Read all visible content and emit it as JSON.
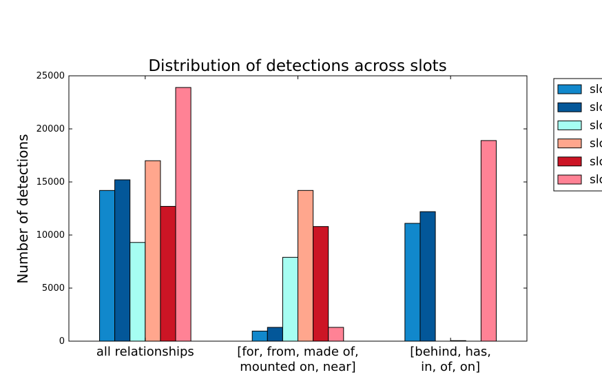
{
  "chart_data": {
    "type": "bar",
    "title": "Distribution of detections across slots",
    "xlabel": "",
    "ylabel": "Number of detections",
    "ylim": [
      0,
      25000
    ],
    "yticks": [
      0,
      5000,
      10000,
      15000,
      20000,
      25000
    ],
    "grid": false,
    "legend_position": "outside top-right (clipped)",
    "categories": [
      [
        "all relationships"
      ],
      [
        "[for, from, made of,",
        "mounted on, near]"
      ],
      [
        "[behind, has,",
        "in, of, on]"
      ]
    ],
    "series": [
      {
        "name": "slo",
        "color": "#1188cc",
        "values": [
          14200,
          950,
          11100
        ]
      },
      {
        "name": "slo",
        "color": "#035799",
        "values": [
          15200,
          1300,
          12200
        ]
      },
      {
        "name": "slo",
        "color": "#a6fef2",
        "values": [
          9300,
          7900,
          0
        ]
      },
      {
        "name": "slo",
        "color": "#ffa68d",
        "values": [
          17000,
          14200,
          50
        ]
      },
      {
        "name": "slo",
        "color": "#cc1525",
        "values": [
          12700,
          10800,
          0
        ]
      },
      {
        "name": "slo",
        "color": "#ff8295",
        "values": [
          23900,
          1300,
          18900
        ]
      }
    ]
  }
}
